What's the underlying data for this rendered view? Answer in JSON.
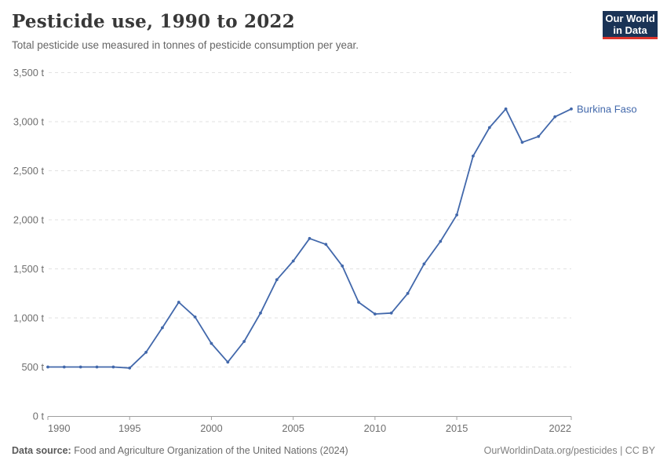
{
  "header": {
    "title": "Pesticide use, 1990 to 2022",
    "subtitle": "Total pesticide use measured in tonnes of pesticide consumption per year.",
    "logo": {
      "line1": "Our World",
      "line2": "in Data",
      "bg_color": "#1a3356",
      "accent_color": "#dc352d"
    }
  },
  "chart_data": {
    "type": "line",
    "title": "Pesticide use, 1990 to 2022",
    "xlabel": "",
    "ylabel": "",
    "unit": "t",
    "grid": "horizontal-dashed",
    "legend_position": "end-of-line-label",
    "xlim": [
      1990,
      2022
    ],
    "ylim": [
      0,
      3500
    ],
    "x_ticks": [
      {
        "year": 1990,
        "label": "1990",
        "align": "start"
      },
      {
        "year": 1995,
        "label": "1995",
        "align": "middle"
      },
      {
        "year": 2000,
        "label": "2000",
        "align": "middle"
      },
      {
        "year": 2005,
        "label": "2005",
        "align": "middle"
      },
      {
        "year": 2010,
        "label": "2010",
        "align": "middle"
      },
      {
        "year": 2015,
        "label": "2015",
        "align": "middle"
      },
      {
        "year": 2022,
        "label": "2022",
        "align": "end"
      }
    ],
    "y_ticks": [
      {
        "value": 0,
        "label": "0 t"
      },
      {
        "value": 500,
        "label": "500 t"
      },
      {
        "value": 1000,
        "label": "1,000 t"
      },
      {
        "value": 1500,
        "label": "1,500 t"
      },
      {
        "value": 2000,
        "label": "2,000 t"
      },
      {
        "value": 2500,
        "label": "2,500 t"
      },
      {
        "value": 3000,
        "label": "3,000 t"
      },
      {
        "value": 3500,
        "label": "3,500 t"
      }
    ],
    "series": [
      {
        "name": "Burkina Faso",
        "color": "#4268ab",
        "x": [
          1990,
          1991,
          1992,
          1993,
          1994,
          1995,
          1996,
          1997,
          1998,
          1999,
          2000,
          2001,
          2002,
          2003,
          2004,
          2005,
          2006,
          2007,
          2008,
          2009,
          2010,
          2011,
          2012,
          2013,
          2014,
          2015,
          2016,
          2017,
          2018,
          2019,
          2020,
          2021,
          2022
        ],
        "values": [
          500,
          500,
          500,
          500,
          500,
          490,
          650,
          900,
          1160,
          1010,
          740,
          550,
          760,
          1050,
          1390,
          1580,
          1810,
          1750,
          1530,
          1160,
          1040,
          1050,
          1250,
          1550,
          1780,
          2050,
          2650,
          2940,
          3130,
          2790,
          2850,
          3050,
          3130
        ]
      }
    ]
  },
  "footer": {
    "source_label": "Data source:",
    "source_text": " Food and Agriculture Organization of the United Nations (2024)",
    "credit": "OurWorldinData.org/pesticides | CC BY"
  }
}
